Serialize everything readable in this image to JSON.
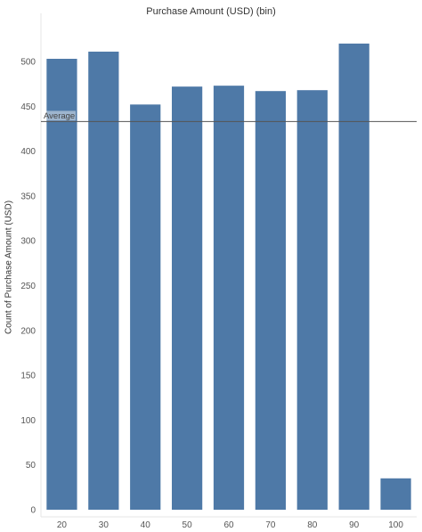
{
  "chart_data": {
    "type": "bar",
    "title": "Purchase Amount (USD) (bin)",
    "xlabel": "",
    "ylabel": "Count of Purchase Amount (USD)",
    "categories": [
      "20",
      "30",
      "40",
      "50",
      "60",
      "70",
      "80",
      "90",
      "100"
    ],
    "values": [
      503,
      511,
      452,
      472,
      473,
      467,
      468,
      520,
      35
    ],
    "ylim": [
      0,
      525
    ],
    "yticks": [
      0,
      50,
      100,
      150,
      200,
      250,
      300,
      350,
      400,
      450,
      500
    ],
    "reference_line": {
      "label": "Average",
      "value": 433
    },
    "grid": false,
    "bar_color": "#4e79a7",
    "reference_line_color": "#555555"
  }
}
